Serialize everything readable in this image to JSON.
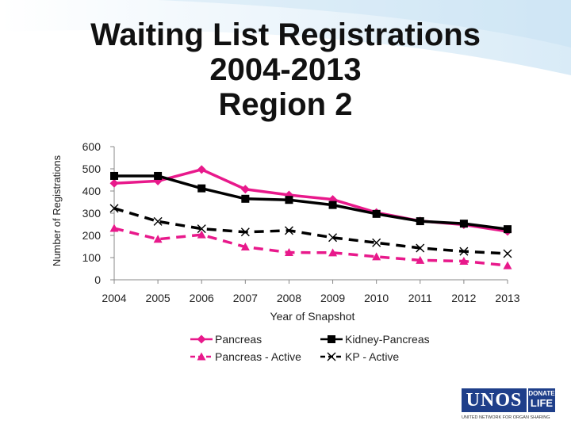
{
  "title": {
    "line1": "Waiting List Registrations",
    "line2": "2004-2013",
    "line3": "Region 2"
  },
  "logo": {
    "name": "UNOS",
    "donate_top": "DONATE",
    "donate_bottom": "LIFE",
    "tagline": "UNITED NETWORK FOR ORGAN SHARING"
  },
  "chart_data": {
    "type": "line",
    "x": [
      2004,
      2005,
      2006,
      2007,
      2008,
      2009,
      2010,
      2011,
      2012,
      2013
    ],
    "xlabel": "Year of Snapshot",
    "ylabel": "Number of Registrations",
    "ylim": [
      0,
      600
    ],
    "yticks": [
      0,
      100,
      200,
      300,
      400,
      500,
      600
    ],
    "grid": false,
    "legend_position": "bottom",
    "series": [
      {
        "name": "Pancreas",
        "values": [
          435,
          445,
          497,
          408,
          382,
          362,
          303,
          265,
          248,
          218
        ],
        "color": "#e8198b",
        "dash": "solid",
        "marker": "diamond"
      },
      {
        "name": "Kidney-Pancreas",
        "values": [
          468,
          468,
          412,
          365,
          360,
          337,
          297,
          264,
          253,
          228
        ],
        "color": "#000000",
        "dash": "solid",
        "marker": "square"
      },
      {
        "name": "Pancreas - Active",
        "values": [
          232,
          183,
          203,
          148,
          123,
          122,
          104,
          88,
          84,
          64
        ],
        "color": "#e8198b",
        "dash": "dashed",
        "marker": "triangle"
      },
      {
        "name": "KP - Active",
        "values": [
          322,
          263,
          230,
          215,
          222,
          190,
          167,
          143,
          128,
          118
        ],
        "color": "#000000",
        "dash": "dashed",
        "marker": "x"
      }
    ]
  }
}
